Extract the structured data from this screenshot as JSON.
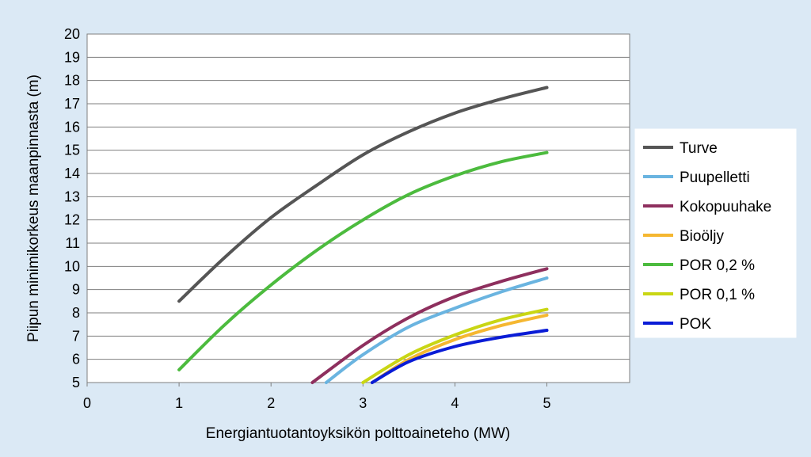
{
  "chart_data": {
    "type": "line",
    "xlabel": "Energiantuotantoyksikön polttoaineteho (MW)",
    "ylabel": "Piipun minimikorkeus maanpinnasta (m)",
    "xlim": [
      0,
      5.9
    ],
    "ylim": [
      5,
      20
    ],
    "x_ticks": [
      "0",
      "1",
      "2",
      "3",
      "4",
      "5"
    ],
    "y_ticks": [
      "5",
      "6",
      "7",
      "8",
      "9",
      "10",
      "11",
      "12",
      "13",
      "14",
      "15",
      "16",
      "17",
      "18",
      "19",
      "20"
    ],
    "grid": "horizontal",
    "legend_position": "right",
    "series": [
      {
        "name": "Turve",
        "color": "#555555",
        "points": [
          [
            1,
            8.5
          ],
          [
            1.5,
            10.4
          ],
          [
            2,
            12.1
          ],
          [
            2.5,
            13.5
          ],
          [
            3,
            14.8
          ],
          [
            3.5,
            15.8
          ],
          [
            4,
            16.6
          ],
          [
            4.5,
            17.2
          ],
          [
            5,
            17.7
          ]
        ]
      },
      {
        "name": "Puupelletti",
        "color": "#6ab4e0",
        "points": [
          [
            2.6,
            5.0
          ],
          [
            3,
            6.2
          ],
          [
            3.5,
            7.4
          ],
          [
            4,
            8.2
          ],
          [
            4.5,
            8.9
          ],
          [
            5,
            9.5
          ]
        ]
      },
      {
        "name": "Kokopuuhake",
        "color": "#8e2f5e",
        "points": [
          [
            2.45,
            5.0
          ],
          [
            3,
            6.6
          ],
          [
            3.5,
            7.8
          ],
          [
            4,
            8.7
          ],
          [
            4.5,
            9.35
          ],
          [
            5,
            9.9
          ]
        ]
      },
      {
        "name": "Bioöljy",
        "color": "#f5b731",
        "points": [
          [
            3.1,
            5.0
          ],
          [
            3.5,
            6.0
          ],
          [
            4,
            6.85
          ],
          [
            4.5,
            7.45
          ],
          [
            5,
            7.9
          ]
        ]
      },
      {
        "name": "POR 0,2 %",
        "color": "#4cbb3e",
        "points": [
          [
            1,
            5.55
          ],
          [
            1.5,
            7.5
          ],
          [
            2,
            9.2
          ],
          [
            2.5,
            10.7
          ],
          [
            3,
            12.0
          ],
          [
            3.5,
            13.1
          ],
          [
            4,
            13.9
          ],
          [
            4.5,
            14.5
          ],
          [
            5,
            14.9
          ]
        ]
      },
      {
        "name": "POR 0,1 %",
        "color": "#c9d614",
        "points": [
          [
            3.0,
            5.0
          ],
          [
            3.5,
            6.2
          ],
          [
            4,
            7.05
          ],
          [
            4.5,
            7.7
          ],
          [
            5,
            8.15
          ]
        ]
      },
      {
        "name": "POK",
        "color": "#0a1cd6",
        "points": [
          [
            3.1,
            5.0
          ],
          [
            3.5,
            5.9
          ],
          [
            4,
            6.55
          ],
          [
            4.5,
            6.95
          ],
          [
            5,
            7.25
          ]
        ]
      }
    ]
  }
}
